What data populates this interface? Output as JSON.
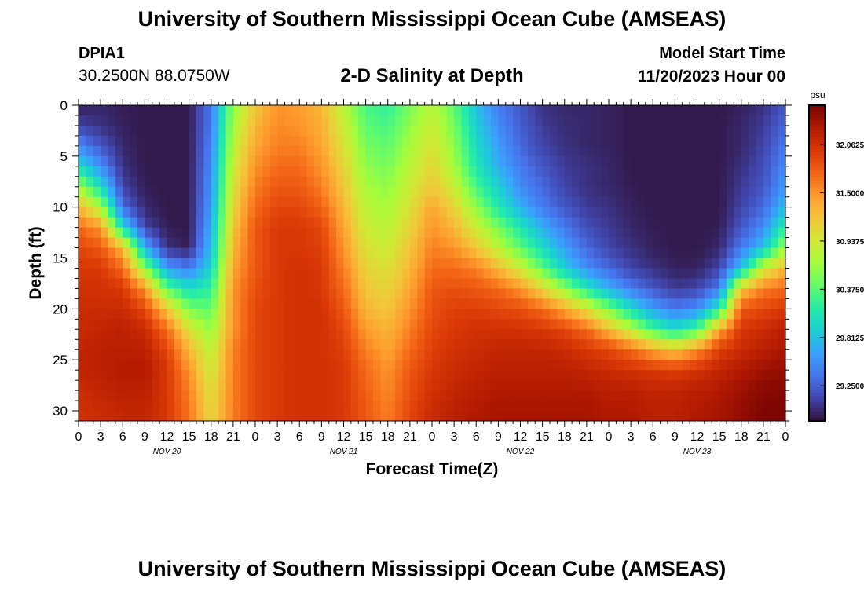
{
  "header": {
    "title": "University of Southern Mississippi Ocean Cube (AMSEAS)",
    "station_id": "DPIA1",
    "coordinates": "30.2500N  88.0750W",
    "subtitle": "2-D Salinity at Depth",
    "model_start_label": "Model Start Time",
    "model_start_value": "11/20/2023 Hour 00"
  },
  "footer": {
    "title": "University of Southern Mississippi Ocean Cube (AMSEAS)"
  },
  "chart_data": {
    "type": "heatmap",
    "title": "2-D Salinity at Depth",
    "xlabel": "Forecast Time(Z)",
    "ylabel": "Depth (ft)",
    "x_tick_labels": [
      "0",
      "3",
      "6",
      "9",
      "12",
      "15",
      "18",
      "21",
      "0",
      "3",
      "6",
      "9",
      "12",
      "15",
      "18",
      "21",
      "0",
      "3",
      "6",
      "9",
      "12",
      "15",
      "18",
      "21",
      "0",
      "3",
      "6",
      "9",
      "12",
      "15",
      "18",
      "21",
      "0"
    ],
    "day_labels": [
      "NOV 20",
      "NOV 21",
      "NOV 22",
      "NOV 23"
    ],
    "xlim_hours": [
      0,
      96
    ],
    "y_ticks": [
      0,
      5,
      10,
      15,
      20,
      25,
      30
    ],
    "ylim": [
      0,
      31
    ],
    "colorbar": {
      "unit": "psu",
      "tick_labels": [
        "32.0625",
        "31.5000",
        "30.9375",
        "30.3750",
        "29.8125",
        "29.2500"
      ],
      "range": [
        28.84,
        32.52
      ],
      "colors": [
        "#30123b",
        "#4145ab",
        "#4675ed",
        "#39a2fc",
        "#1bcfd4",
        "#24eca6",
        "#61fc6c",
        "#a4fc3b",
        "#d1e834",
        "#f3c63a",
        "#fe9b2d",
        "#f36315",
        "#d93806",
        "#b11901",
        "#7a0403"
      ]
    },
    "time_hours": [
      0,
      3,
      6,
      9,
      12,
      15,
      18,
      21,
      24,
      27,
      30,
      33,
      36,
      39,
      42,
      45,
      48,
      51,
      54,
      57,
      60,
      63,
      66,
      69,
      72,
      75,
      78,
      81,
      84,
      87,
      90,
      93,
      96
    ],
    "depth_ft": [
      0,
      2,
      4,
      6,
      8,
      10,
      12,
      14,
      16,
      18,
      20,
      22,
      24,
      26,
      28,
      30,
      31
    ],
    "salinity_psu": [
      [
        28.9,
        28.95,
        28.9,
        28.88,
        28.88,
        28.88,
        29.4,
        30.6,
        31.2,
        31.5,
        31.45,
        31.3,
        30.8,
        30.3,
        30.2,
        30.5,
        30.8,
        30.4,
        29.8,
        29.4,
        29.2,
        29.0,
        28.95,
        28.95,
        28.92,
        28.88,
        28.88,
        28.88,
        28.88,
        28.88,
        28.92,
        29.0,
        29.2
      ],
      [
        29.1,
        29.0,
        28.92,
        28.88,
        28.88,
        28.88,
        29.4,
        30.7,
        31.3,
        31.55,
        31.5,
        31.35,
        30.9,
        30.4,
        30.3,
        30.6,
        30.9,
        30.5,
        29.9,
        29.5,
        29.25,
        29.05,
        28.98,
        28.95,
        28.92,
        28.88,
        28.88,
        28.88,
        28.88,
        28.88,
        28.95,
        29.05,
        29.3
      ],
      [
        29.5,
        29.2,
        28.95,
        28.88,
        28.88,
        28.88,
        29.45,
        30.8,
        31.4,
        31.6,
        31.6,
        31.4,
        31.0,
        30.5,
        30.4,
        30.7,
        31.0,
        30.6,
        30.0,
        29.6,
        29.3,
        29.1,
        29.0,
        28.95,
        28.92,
        28.88,
        28.88,
        28.88,
        28.88,
        28.88,
        28.95,
        29.1,
        29.4
      ],
      [
        30.0,
        29.5,
        29.0,
        28.88,
        28.88,
        28.88,
        29.5,
        30.9,
        31.5,
        31.7,
        31.7,
        31.5,
        31.1,
        30.6,
        30.5,
        30.8,
        31.1,
        30.7,
        30.1,
        29.7,
        29.4,
        29.2,
        29.05,
        29.0,
        28.95,
        28.88,
        28.88,
        28.88,
        28.88,
        28.88,
        29.0,
        29.15,
        29.5
      ],
      [
        30.7,
        30.0,
        29.1,
        28.9,
        28.88,
        28.88,
        29.55,
        31.0,
        31.6,
        31.8,
        31.8,
        31.6,
        31.2,
        30.7,
        30.6,
        30.9,
        31.2,
        30.9,
        30.3,
        29.9,
        29.5,
        29.3,
        29.1,
        29.0,
        28.95,
        28.9,
        28.88,
        28.88,
        28.88,
        28.88,
        29.05,
        29.2,
        29.6
      ],
      [
        31.3,
        30.7,
        29.3,
        28.95,
        28.88,
        28.88,
        29.6,
        31.1,
        31.7,
        31.9,
        31.9,
        31.75,
        31.3,
        30.8,
        30.7,
        31.0,
        31.4,
        31.1,
        30.6,
        30.1,
        29.7,
        29.4,
        29.2,
        29.05,
        29.0,
        28.92,
        28.88,
        28.88,
        28.88,
        28.88,
        29.1,
        29.3,
        29.8
      ],
      [
        31.7,
        31.5,
        30.0,
        29.1,
        28.9,
        28.88,
        29.7,
        31.2,
        31.8,
        32.0,
        32.0,
        31.9,
        31.4,
        30.9,
        30.8,
        31.1,
        31.5,
        31.3,
        30.9,
        30.5,
        30.1,
        29.7,
        29.4,
        29.15,
        29.05,
        28.95,
        28.9,
        28.88,
        28.88,
        28.9,
        29.2,
        29.5,
        30.2
      ],
      [
        31.9,
        31.8,
        31.3,
        29.7,
        29.0,
        28.9,
        29.8,
        31.3,
        31.8,
        32.0,
        32.0,
        31.95,
        31.5,
        31.0,
        30.9,
        31.2,
        31.6,
        31.5,
        31.2,
        30.8,
        30.4,
        30.0,
        29.6,
        29.3,
        29.1,
        29.0,
        28.92,
        28.88,
        28.88,
        28.95,
        29.4,
        29.8,
        30.7
      ],
      [
        32.0,
        32.0,
        31.7,
        30.6,
        29.6,
        29.4,
        29.95,
        31.4,
        31.8,
        32.0,
        32.05,
        32.0,
        31.6,
        31.1,
        31.0,
        31.3,
        31.7,
        31.7,
        31.6,
        31.3,
        30.9,
        30.4,
        29.9,
        29.5,
        29.3,
        29.1,
        29.0,
        28.92,
        28.92,
        29.1,
        29.8,
        30.9,
        31.3
      ],
      [
        32.05,
        32.05,
        32.0,
        31.5,
        30.4,
        30.0,
        30.2,
        31.5,
        31.85,
        32.0,
        32.05,
        32.0,
        31.7,
        31.2,
        31.1,
        31.4,
        31.8,
        31.85,
        31.8,
        31.7,
        31.5,
        31.1,
        30.6,
        30.1,
        29.7,
        29.4,
        29.2,
        29.05,
        29.1,
        29.4,
        31.2,
        31.6,
        31.7
      ],
      [
        32.1,
        32.1,
        32.1,
        31.9,
        31.2,
        30.5,
        30.4,
        31.5,
        31.9,
        32.0,
        32.05,
        32.05,
        31.8,
        31.3,
        31.2,
        31.5,
        31.85,
        31.95,
        31.95,
        31.9,
        31.85,
        31.7,
        31.4,
        31.0,
        30.5,
        30.0,
        29.6,
        29.4,
        29.5,
        30.1,
        31.8,
        31.9,
        32.0
      ],
      [
        32.1,
        32.15,
        32.2,
        32.1,
        31.7,
        31.0,
        30.6,
        31.5,
        31.9,
        32.0,
        32.05,
        32.05,
        31.9,
        31.45,
        31.3,
        31.6,
        31.9,
        32.0,
        32.05,
        32.05,
        32.05,
        32.0,
        31.9,
        31.7,
        31.3,
        30.8,
        30.3,
        30.0,
        30.3,
        31.4,
        32.0,
        32.1,
        32.2
      ],
      [
        32.15,
        32.2,
        32.2,
        32.2,
        31.9,
        31.3,
        30.8,
        31.6,
        31.9,
        32.0,
        32.05,
        32.05,
        31.95,
        31.6,
        31.4,
        31.7,
        31.95,
        32.05,
        32.1,
        32.15,
        32.15,
        32.15,
        32.1,
        32.0,
        31.9,
        31.7,
        31.4,
        31.2,
        31.5,
        31.95,
        32.1,
        32.2,
        32.3
      ],
      [
        32.15,
        32.2,
        32.25,
        32.25,
        32.0,
        31.5,
        30.9,
        31.6,
        31.9,
        32.0,
        32.05,
        32.05,
        32.0,
        31.7,
        31.5,
        31.8,
        32.0,
        32.1,
        32.15,
        32.2,
        32.2,
        32.2,
        32.2,
        32.15,
        32.1,
        32.05,
        32.0,
        31.95,
        32.05,
        32.15,
        32.25,
        32.35,
        32.4
      ],
      [
        32.1,
        32.15,
        32.2,
        32.2,
        32.0,
        31.6,
        31.0,
        31.6,
        31.9,
        32.0,
        32.05,
        32.05,
        32.0,
        31.75,
        31.55,
        31.85,
        32.05,
        32.15,
        32.2,
        32.25,
        32.25,
        32.25,
        32.25,
        32.25,
        32.2,
        32.2,
        32.15,
        32.15,
        32.2,
        32.25,
        32.35,
        32.45,
        32.48
      ],
      [
        32.05,
        32.1,
        32.15,
        32.15,
        32.0,
        31.65,
        31.05,
        31.6,
        31.9,
        32.0,
        32.05,
        32.05,
        32.0,
        31.8,
        31.6,
        31.9,
        32.1,
        32.2,
        32.25,
        32.3,
        32.3,
        32.3,
        32.3,
        32.3,
        32.25,
        32.25,
        32.2,
        32.2,
        32.25,
        32.3,
        32.4,
        32.5,
        32.5
      ],
      [
        32.05,
        32.1,
        32.15,
        32.15,
        32.0,
        31.65,
        31.05,
        31.6,
        31.9,
        32.0,
        32.05,
        32.05,
        32.0,
        31.8,
        31.6,
        31.9,
        32.1,
        32.2,
        32.25,
        32.3,
        32.3,
        32.3,
        32.3,
        32.3,
        32.25,
        32.25,
        32.2,
        32.2,
        32.25,
        32.3,
        32.4,
        32.5,
        32.5
      ]
    ]
  }
}
